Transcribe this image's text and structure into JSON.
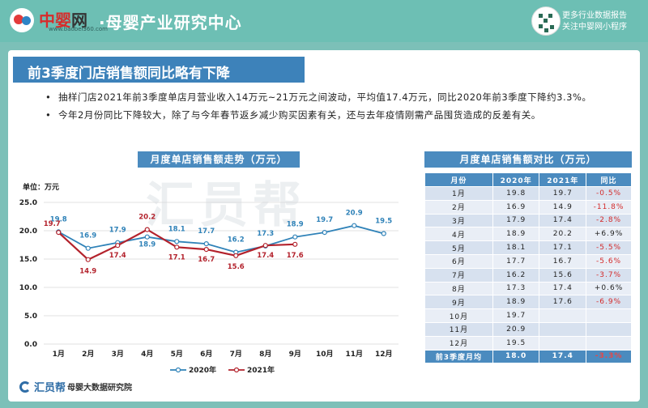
{
  "header": {
    "logo_text_1": "中婴",
    "logo_text_2": "网",
    "logo_url": "www.baobei360.com",
    "title": "·母婴产业研究中心",
    "right_line1": "更多行业数据报告",
    "right_line2": "关注中婴网小程序"
  },
  "panel": {
    "title": "前3季度门店销售额同比略有下降",
    "bullets": [
      "抽样门店2021年前3季度单店月营业收入14万元~21万元之间波动，平均值17.4万元，同比2020年前3季度下降约3.3%。",
      "今年2月份同比下降较大，除了与今年春节返乡减少购买因素有关，还与去年疫情刚需产品囤货造成的反差有关。"
    ]
  },
  "left_section_title": "月度单店销售额走势（万元）",
  "right_section_title": "月度单店销售额对比（万元）",
  "watermark": "汇员帮",
  "chart_data": {
    "type": "line",
    "categories": [
      "1月",
      "2月",
      "3月",
      "4月",
      "5月",
      "6月",
      "7月",
      "8月",
      "9月",
      "10月",
      "11月",
      "12月"
    ],
    "series": [
      {
        "name": "2020年",
        "color": "#2f82b8",
        "values": [
          19.8,
          16.9,
          17.9,
          18.9,
          18.1,
          17.7,
          16.2,
          17.3,
          18.9,
          19.7,
          20.9,
          19.5
        ]
      },
      {
        "name": "2021年",
        "color": "#b3222c",
        "values": [
          19.7,
          14.9,
          17.4,
          20.2,
          17.1,
          16.7,
          15.6,
          17.4,
          17.6,
          null,
          null,
          null
        ]
      }
    ],
    "yunit_label": "单位：万元",
    "yticks": [
      "0.0",
      "5.0",
      "10.0",
      "15.0",
      "20.0",
      "25.0"
    ],
    "ylim": [
      0,
      25
    ],
    "legend": "bottom"
  },
  "table": {
    "headers": [
      "月份",
      "2020年",
      "2021年",
      "同比"
    ],
    "rows": [
      [
        "1月",
        "19.8",
        "19.7",
        "-0.5%"
      ],
      [
        "2月",
        "16.9",
        "14.9",
        "-11.8%"
      ],
      [
        "3月",
        "17.9",
        "17.4",
        "-2.8%"
      ],
      [
        "4月",
        "18.9",
        "20.2",
        "+6.9%"
      ],
      [
        "5月",
        "18.1",
        "17.1",
        "-5.5%"
      ],
      [
        "6月",
        "17.7",
        "16.7",
        "-5.6%"
      ],
      [
        "7月",
        "16.2",
        "15.6",
        "-3.7%"
      ],
      [
        "8月",
        "17.3",
        "17.4",
        "+0.6%"
      ],
      [
        "9月",
        "18.9",
        "17.6",
        "-6.9%"
      ],
      [
        "10月",
        "19.7",
        "",
        ""
      ],
      [
        "11月",
        "20.9",
        "",
        ""
      ],
      [
        "12月",
        "19.5",
        "",
        ""
      ]
    ],
    "summary": [
      "前3季度月均",
      "18.0",
      "17.4",
      "-3.3%"
    ]
  },
  "footer": {
    "brand": "汇员帮",
    "sub": "母婴大数据研究院"
  }
}
